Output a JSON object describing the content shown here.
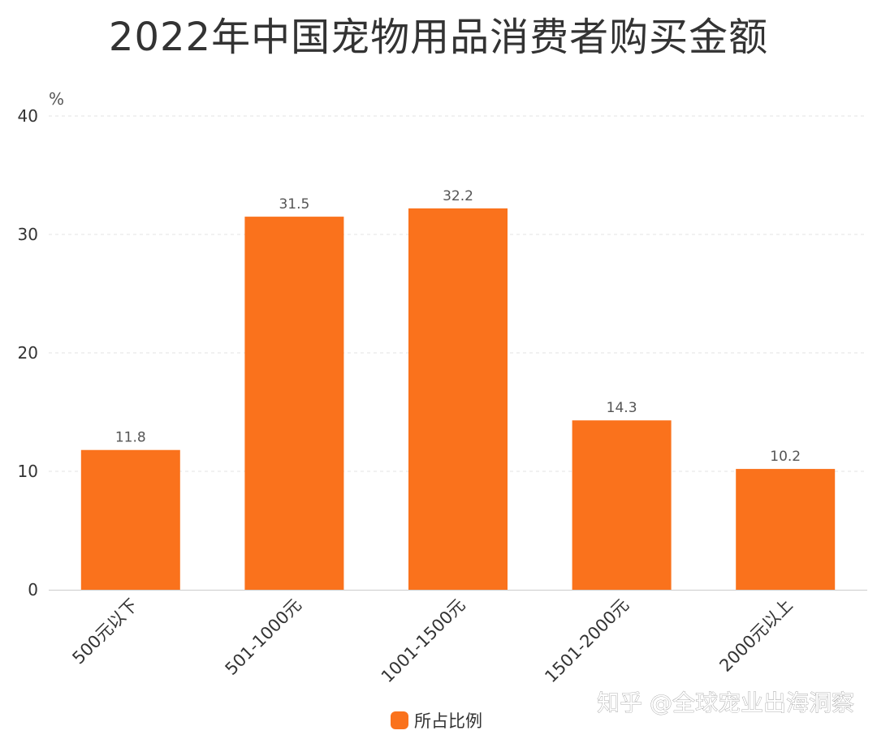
{
  "chart_data": {
    "type": "bar",
    "title": "2022年中国宠物用品消费者购买金额",
    "ylabel": "%",
    "xlabel": "",
    "categories": [
      "500元以下",
      "501-1000元",
      "1001-1500元",
      "1501-2000元",
      "2000元以上"
    ],
    "series": [
      {
        "name": "所占比例",
        "values": [
          11.8,
          31.5,
          32.2,
          14.3,
          10.2
        ],
        "color": "#fa721c"
      }
    ],
    "ylim": [
      0,
      40
    ],
    "yticks": [
      0,
      10,
      20,
      30,
      40
    ],
    "grid": true,
    "legend_position": "bottom-center",
    "data_labels": true
  },
  "watermark": "知乎 @全球宠业出海洞察"
}
